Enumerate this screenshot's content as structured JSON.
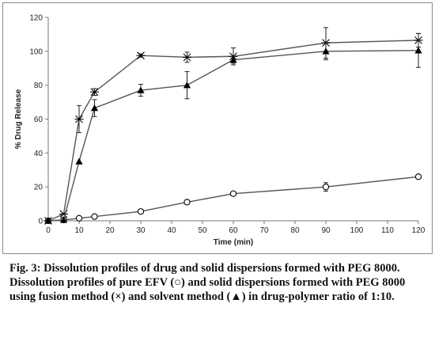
{
  "chart_data": {
    "type": "line",
    "title": "",
    "xlabel": "Time (min)",
    "ylabel": "% Drug Release",
    "xlim": [
      0,
      120
    ],
    "ylim": [
      0,
      120
    ],
    "xticks": [
      0,
      10,
      20,
      30,
      40,
      50,
      60,
      70,
      80,
      90,
      100,
      110,
      120
    ],
    "yticks": [
      0,
      20,
      40,
      60,
      80,
      100,
      120
    ],
    "grid": false,
    "legend": "none",
    "series": [
      {
        "marker": "circle",
        "color": "#000000",
        "x": [
          0,
          5,
          10,
          15,
          30,
          45,
          60,
          90,
          120
        ],
        "y": [
          0,
          0.5,
          1.5,
          2.5,
          5.5,
          11,
          16,
          20,
          26
        ],
        "err": [
          0,
          0,
          0,
          0.5,
          0.5,
          1,
          0.5,
          2.5,
          1
        ]
      },
      {
        "marker": "cross",
        "color": "#000000",
        "x": [
          0,
          5,
          10,
          15,
          30,
          45,
          60,
          90,
          120
        ],
        "y": [
          0,
          4,
          60,
          76,
          97.5,
          96.5,
          97,
          105,
          106.5
        ],
        "err": [
          0,
          0,
          8,
          2,
          1,
          3,
          5,
          9,
          4
        ]
      },
      {
        "marker": "triangle",
        "color": "#000000",
        "x": [
          0,
          5,
          10,
          15,
          30,
          45,
          60,
          90,
          120
        ],
        "y": [
          0,
          0.5,
          35,
          66.5,
          77,
          80,
          95,
          100,
          100.5
        ],
        "err": [
          0,
          0,
          0,
          5,
          3.5,
          8,
          2,
          5,
          10
        ]
      }
    ]
  },
  "caption": {
    "title": "Fig. 3: Dissolution profiles of drug and solid dispersions formed with PEG 8000.",
    "body": "Dissolution profiles of pure EFV (○) and solid dispersions formed with PEG 8000 using fusion method (×) and solvent method (▲) in drug-polymer ratio of 1:10."
  }
}
